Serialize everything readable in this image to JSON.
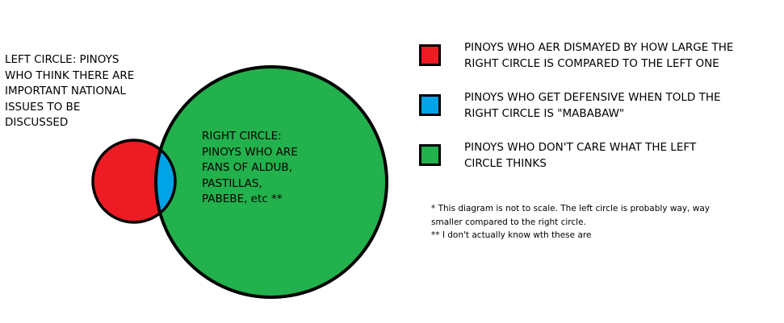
{
  "colors": {
    "left_circle": "#ed1c24",
    "right_circle": "#22b14c",
    "overlap": "#00a2e8",
    "outline": "#000000"
  },
  "left_circle_label": {
    "lines": [
      "LEFT CIRCLE: PINOYS",
      "WHO THINK THERE ARE",
      "IMPORTANT NATIONAL",
      "ISSUES TO BE",
      "DISCUSSED"
    ]
  },
  "right_circle_label": {
    "lines": [
      "RIGHT CIRCLE:",
      "PINOYS WHO ARE",
      "FANS OF ALDUB,",
      "PASTILLAS,",
      "PABEBE, etc **"
    ]
  },
  "legend": [
    {
      "color": "#ed1c24",
      "lines": [
        "PINOYS WHO AER DISMAYED BY HOW LARGE THE",
        "RIGHT CIRCLE IS COMPARED TO THE LEFT ONE"
      ]
    },
    {
      "color": "#00a2e8",
      "lines": [
        "PINOYS WHO GET DEFENSIVE WHEN TOLD THE",
        "RIGHT CIRCLE IS \"MABABAW\""
      ]
    },
    {
      "color": "#22b14c",
      "lines": [
        "PINOYS WHO DON'T CARE WHAT THE LEFT",
        "CIRCLE THINKS"
      ]
    }
  ],
  "notes": [
    "* This diagram is not to scale. The left circle is probably way, way",
    "smaller compared to the right circle.",
    "** I don't actually know wth these are"
  ]
}
